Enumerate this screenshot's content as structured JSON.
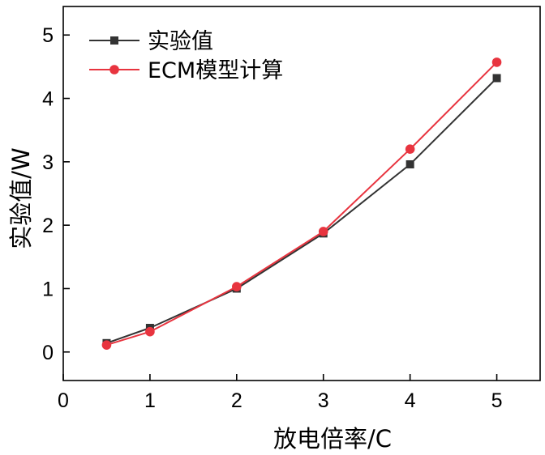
{
  "chart_data": {
    "type": "line",
    "xlabel": "放电倍率/C",
    "ylabel": "实验值/W",
    "xlim": [
      0,
      5.5
    ],
    "ylim": [
      -0.45,
      5.45
    ],
    "xticks": [
      0,
      1,
      2,
      3,
      4,
      5
    ],
    "yticks": [
      0,
      1,
      2,
      3,
      4,
      5
    ],
    "grid": false,
    "legend_position": "top-left",
    "series": [
      {
        "name": "实验值",
        "marker": "square",
        "color": "#333333",
        "x": [
          0.5,
          1,
          2,
          3,
          4,
          5
        ],
        "y": [
          0.14,
          0.38,
          1.0,
          1.87,
          2.96,
          4.32
        ]
      },
      {
        "name": "ECM模型计算",
        "marker": "circle",
        "color": "#e8343f",
        "x": [
          0.5,
          1,
          2,
          3,
          4,
          5
        ],
        "y": [
          0.11,
          0.32,
          1.03,
          1.9,
          3.2,
          4.57
        ]
      }
    ]
  }
}
